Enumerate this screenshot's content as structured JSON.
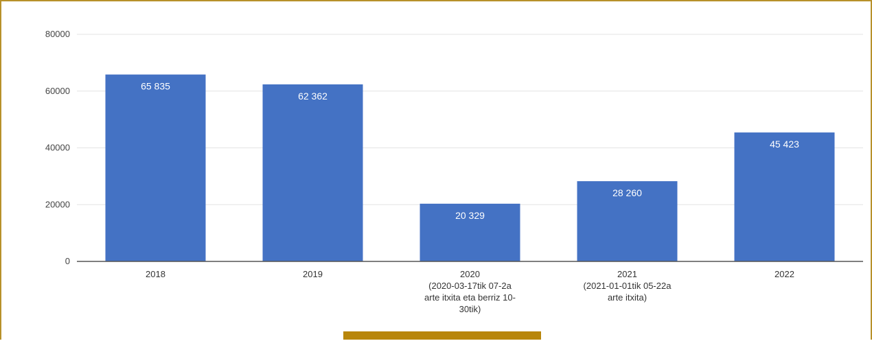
{
  "colors": {
    "bar": "#4472c4",
    "frame": "#b8912a",
    "grid": "#e3e3e3",
    "axis": "#555555",
    "footer_bar": "#b8860b"
  },
  "chart_data": {
    "type": "bar",
    "title": "",
    "xlabel": "",
    "ylabel": "",
    "ylim": [
      0,
      80000
    ],
    "yticks": [
      0,
      20000,
      40000,
      60000,
      80000
    ],
    "ytick_labels": [
      "0",
      "20000",
      "40000",
      "60000",
      "80000"
    ],
    "grid": true,
    "legend": "none",
    "categories": [
      {
        "lines": [
          "2018"
        ]
      },
      {
        "lines": [
          "2019"
        ]
      },
      {
        "lines": [
          "2020",
          "(2020-03-17tik 07-2a",
          "arte itxita eta berriz 10-",
          "30tik)"
        ]
      },
      {
        "lines": [
          "2021",
          "(2021-01-01tik 05-22a",
          "arte itxita)"
        ]
      },
      {
        "lines": [
          "2022"
        ]
      }
    ],
    "values": [
      65835,
      62362,
      20329,
      28260,
      45423
    ],
    "data_labels": [
      "65 835",
      "62 362",
      "20 329",
      "28 260",
      "45 423"
    ]
  }
}
